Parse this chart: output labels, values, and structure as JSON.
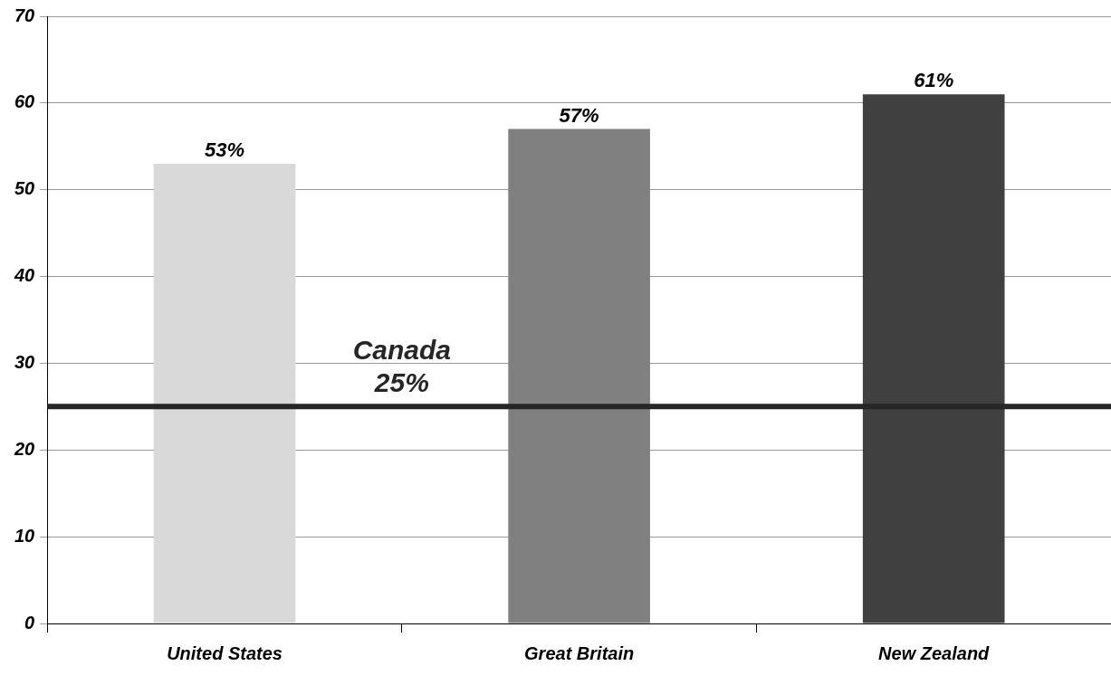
{
  "chart_data": {
    "type": "bar",
    "categories": [
      "United States",
      "Great Britain",
      "New Zealand"
    ],
    "values": [
      53,
      57,
      61
    ],
    "colors": [
      "#d9d9d9",
      "#808080",
      "#404040"
    ],
    "value_labels": [
      "53%",
      "57%",
      "61%"
    ],
    "ylim": [
      0,
      70
    ],
    "yticks": [
      0,
      10,
      20,
      30,
      40,
      50,
      60,
      70
    ],
    "grid": "y",
    "legend": false,
    "ref_lines": [
      {
        "axis": "y",
        "value": 25,
        "label": "Canada\n25%",
        "color": "#262626"
      }
    ]
  }
}
